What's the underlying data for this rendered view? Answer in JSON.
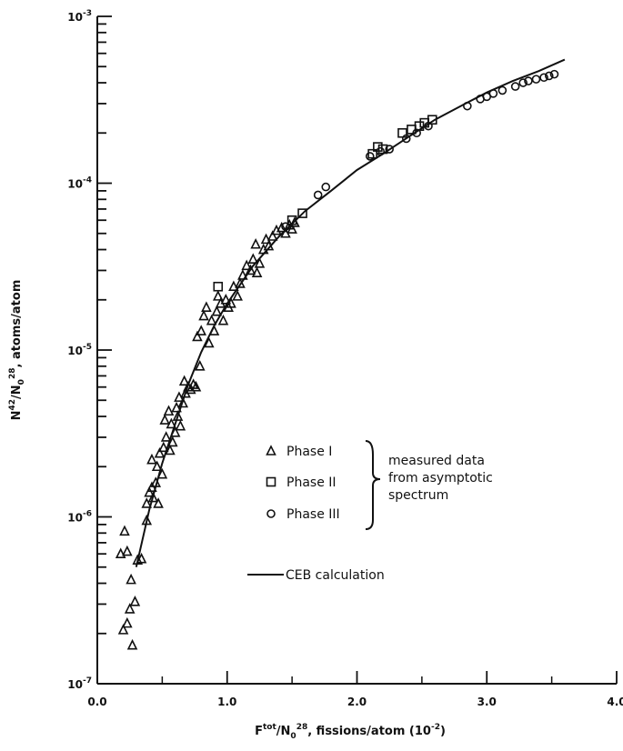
{
  "chart_data": {
    "type": "scatter",
    "title": "",
    "xlabel": "F^tot/N0^28, fissions/atom (10^-2)",
    "ylabel": "N^42/N0^28, atoms/atom",
    "xlim": [
      0,
      4
    ],
    "ylim": [
      1e-07,
      0.001
    ],
    "yscale": "log",
    "x_ticks": [
      "0.0",
      "1.0",
      "2.0",
      "3.0",
      "4.0"
    ],
    "y_ticks": [
      {
        "value": 1e-07,
        "label": "10-7"
      },
      {
        "value": 1e-06,
        "label": "10-6"
      },
      {
        "value": 1e-05,
        "label": "10-5"
      },
      {
        "value": 0.0001,
        "label": "10-4"
      },
      {
        "value": 0.001,
        "label": "10-3"
      }
    ],
    "grid": false,
    "legend": {
      "placement": "center-right",
      "entries": [
        "Phase I",
        "Phase II",
        "Phase III"
      ],
      "bracket_lines": [
        "measured data",
        "from asymptotic",
        "spectrum"
      ],
      "line_label": "CEB calculation"
    },
    "series": [
      {
        "name": "Phase I",
        "marker": "triangle",
        "points": [
          [
            0.18,
            6e-07
          ],
          [
            0.21,
            8.2e-07
          ],
          [
            0.23,
            6.2e-07
          ],
          [
            0.2,
            2.1e-07
          ],
          [
            0.23,
            2.3e-07
          ],
          [
            0.25,
            2.8e-07
          ],
          [
            0.27,
            1.7e-07
          ],
          [
            0.29,
            3.1e-07
          ],
          [
            0.26,
            4.2e-07
          ],
          [
            0.31,
            5.5e-07
          ],
          [
            0.34,
            5.6e-07
          ],
          [
            0.38,
            9.5e-07
          ],
          [
            0.38,
            1.2e-06
          ],
          [
            0.4,
            1.4e-06
          ],
          [
            0.42,
            1.5e-06
          ],
          [
            0.43,
            1.3e-06
          ],
          [
            0.45,
            1.6e-06
          ],
          [
            0.47,
            1.2e-06
          ],
          [
            0.42,
            2.2e-06
          ],
          [
            0.46,
            2e-06
          ],
          [
            0.48,
            2.4e-06
          ],
          [
            0.5,
            1.8e-06
          ],
          [
            0.51,
            2.6e-06
          ],
          [
            0.53,
            3e-06
          ],
          [
            0.52,
            3.8e-06
          ],
          [
            0.55,
            4.3e-06
          ],
          [
            0.57,
            3.6e-06
          ],
          [
            0.56,
            2.5e-06
          ],
          [
            0.58,
            2.8e-06
          ],
          [
            0.6,
            3.2e-06
          ],
          [
            0.62,
            4e-06
          ],
          [
            0.61,
            4.5e-06
          ],
          [
            0.64,
            3.5e-06
          ],
          [
            0.63,
            5.2e-06
          ],
          [
            0.66,
            4.8e-06
          ],
          [
            0.68,
            5.5e-06
          ],
          [
            0.67,
            6.5e-06
          ],
          [
            0.7,
            6e-06
          ],
          [
            0.72,
            5.8e-06
          ],
          [
            0.74,
            6.2e-06
          ],
          [
            0.76,
            6e-06
          ],
          [
            0.79,
            8e-06
          ],
          [
            0.77,
            1.2e-05
          ],
          [
            0.8,
            1.3e-05
          ],
          [
            0.82,
            1.6e-05
          ],
          [
            0.84,
            1.8e-05
          ],
          [
            0.86,
            1.1e-05
          ],
          [
            0.88,
            1.5e-05
          ],
          [
            0.9,
            1.3e-05
          ],
          [
            0.92,
            1.7e-05
          ],
          [
            0.95,
            1.9e-05
          ],
          [
            0.93,
            2.1e-05
          ],
          [
            0.97,
            1.5e-05
          ],
          [
            0.99,
            2e-05
          ],
          [
            1.01,
            1.8e-05
          ],
          [
            1.03,
            1.9e-05
          ],
          [
            1.05,
            2.4e-05
          ],
          [
            1.08,
            2.1e-05
          ],
          [
            1.1,
            2.5e-05
          ],
          [
            1.12,
            2.8e-05
          ],
          [
            1.15,
            3.2e-05
          ],
          [
            1.18,
            3e-05
          ],
          [
            1.2,
            3.5e-05
          ],
          [
            1.23,
            2.9e-05
          ],
          [
            1.25,
            3.3e-05
          ],
          [
            1.22,
            4.3e-05
          ],
          [
            1.28,
            4e-05
          ],
          [
            1.3,
            4.6e-05
          ],
          [
            1.32,
            4.2e-05
          ],
          [
            1.35,
            4.8e-05
          ],
          [
            1.38,
            5.2e-05
          ],
          [
            1.42,
            5.4e-05
          ],
          [
            1.45,
            5e-05
          ],
          [
            1.48,
            5.6e-05
          ],
          [
            1.5,
            5.3e-05
          ],
          [
            1.52,
            5.8e-05
          ]
        ]
      },
      {
        "name": "Phase II",
        "marker": "square",
        "points": [
          [
            0.93,
            2.4e-05
          ],
          [
            1.5,
            6e-05
          ],
          [
            1.58,
            6.6e-05
          ],
          [
            2.12,
            0.00015
          ],
          [
            2.16,
            0.000165
          ],
          [
            2.2,
            0.00016
          ],
          [
            2.35,
            0.0002
          ],
          [
            2.42,
            0.00021
          ],
          [
            2.48,
            0.00022
          ],
          [
            2.52,
            0.00023
          ],
          [
            2.58,
            0.00024
          ]
        ]
      },
      {
        "name": "Phase III",
        "marker": "circle",
        "points": [
          [
            1.45,
            5.5e-05
          ],
          [
            1.7,
            8.5e-05
          ],
          [
            1.76,
            9.5e-05
          ],
          [
            2.1,
            0.000145
          ],
          [
            2.18,
            0.000155
          ],
          [
            2.25,
            0.00016
          ],
          [
            2.38,
            0.000185
          ],
          [
            2.46,
            0.0002
          ],
          [
            2.55,
            0.00022
          ],
          [
            2.85,
            0.00029
          ],
          [
            2.95,
            0.00032
          ],
          [
            3.0,
            0.00033
          ],
          [
            3.05,
            0.000345
          ],
          [
            3.12,
            0.00036
          ],
          [
            3.22,
            0.00038
          ],
          [
            3.28,
            0.0004
          ],
          [
            3.32,
            0.00041
          ],
          [
            3.38,
            0.00042
          ],
          [
            3.44,
            0.00043
          ],
          [
            3.48,
            0.00044
          ],
          [
            3.52,
            0.00045
          ]
        ]
      },
      {
        "name": "CEB calculation",
        "marker": "line",
        "points": [
          [
            0.3,
            5e-07
          ],
          [
            0.4,
            1.1e-06
          ],
          [
            0.5,
            2.1e-06
          ],
          [
            0.6,
            3.6e-06
          ],
          [
            0.7,
            6.2e-06
          ],
          [
            0.8,
            9.7e-06
          ],
          [
            0.9,
            1.4e-05
          ],
          [
            1.0,
            1.9e-05
          ],
          [
            1.2,
            3.2e-05
          ],
          [
            1.4,
            4.8e-05
          ],
          [
            1.6,
            6.8e-05
          ],
          [
            1.8,
            9e-05
          ],
          [
            2.0,
            0.00012
          ],
          [
            2.2,
            0.00015
          ],
          [
            2.4,
            0.00019
          ],
          [
            2.6,
            0.00024
          ],
          [
            2.8,
            0.00029
          ],
          [
            3.0,
            0.00035
          ],
          [
            3.2,
            0.00041
          ],
          [
            3.4,
            0.00047
          ],
          [
            3.6,
            0.00055
          ]
        ]
      }
    ]
  }
}
